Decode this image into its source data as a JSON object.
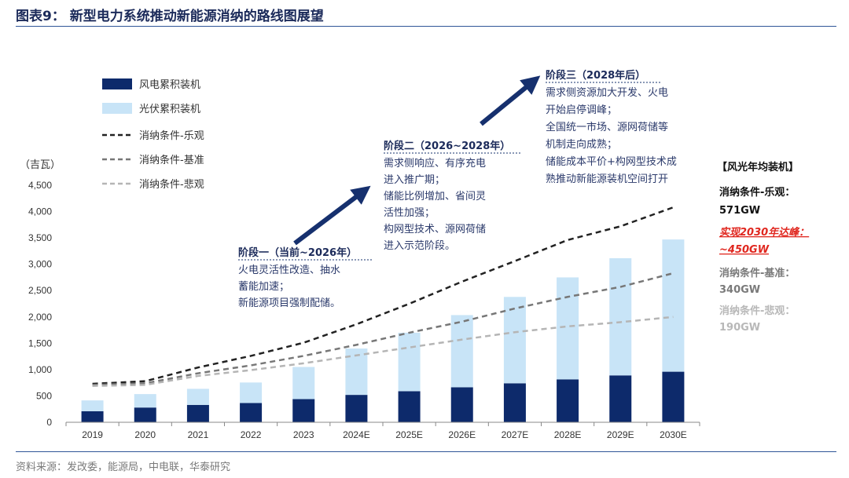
{
  "title": "图表9：  新型电力系统推动新能源消纳的路线图展望",
  "source": "资料来源：发改委，能源局，中电联，华泰研究",
  "colors": {
    "wind": "#0d2a6b",
    "solar": "#c8e4f7",
    "optimistic": "#222222",
    "base": "#777777",
    "pessimistic": "#b5b5b5",
    "arrow": "#16306e",
    "red": "#e0271f"
  },
  "chart_data": {
    "type": "bar",
    "stacked": true,
    "ylabel": "（吉瓦）",
    "ylim": [
      0,
      4500
    ],
    "yticks": [
      0,
      500,
      1000,
      1500,
      2000,
      2500,
      3000,
      3500,
      4000,
      4500
    ],
    "ytick_labels": [
      "0",
      "500",
      "1,000",
      "1,500",
      "2,000",
      "2,500",
      "3,000",
      "3,500",
      "4,000",
      "4,500"
    ],
    "categories": [
      "2019",
      "2020",
      "2021",
      "2022",
      "2023",
      "2024E",
      "2025E",
      "2026E",
      "2027E",
      "2028E",
      "2029E",
      "2030E"
    ],
    "series": [
      {
        "name": "风电累积装机",
        "kind": "bar",
        "values": [
          210,
          280,
          330,
          365,
          440,
          520,
          590,
          665,
          740,
          815,
          890,
          960
        ]
      },
      {
        "name": "光伏累积装机",
        "kind": "bar",
        "values": [
          205,
          255,
          305,
          390,
          610,
          880,
          1110,
          1370,
          1640,
          1935,
          2225,
          2510
        ]
      },
      {
        "name": "消纳条件-乐观",
        "kind": "line",
        "style": "dashed",
        "values": [
          730,
          780,
          1040,
          1260,
          1510,
          1860,
          2250,
          2670,
          3060,
          3460,
          3720,
          4080
        ]
      },
      {
        "name": "消纳条件-基准",
        "kind": "line",
        "style": "dashed",
        "values": [
          710,
          740,
          930,
          1080,
          1260,
          1470,
          1700,
          1910,
          2160,
          2380,
          2570,
          2830
        ]
      },
      {
        "name": "消纳条件-悲观",
        "kind": "line",
        "style": "dashed",
        "values": [
          690,
          710,
          880,
          990,
          1120,
          1270,
          1420,
          1570,
          1710,
          1820,
          1900,
          2000
        ]
      }
    ],
    "legend_placement": "top-left"
  },
  "stages": [
    {
      "title": "阶段一（当前~2026年）",
      "lines": [
        "火电灵活性改造、抽水",
        "蓄能加速；",
        "新能源项目强制配储。"
      ]
    },
    {
      "title": "阶段二（2026~2028年）",
      "lines": [
        "需求侧响应、有序充电",
        "进入推广期；",
        "储能比例增加、省间灵",
        "活性加强；",
        "构网型技术、源网荷储",
        "进入示范阶段。"
      ]
    },
    {
      "title": "阶段三（2028年后）",
      "lines": [
        "需求侧资源加大开发、火电",
        "开始启停调峰；",
        "全国统一市场、源网荷储等",
        "机制走向成熟；",
        "储能成本平价+构网型技术成",
        "熟推动新能源装机空间打开"
      ]
    }
  ],
  "side_panel": {
    "header": "【风光年均装机】",
    "items": [
      {
        "label": "消纳条件-乐观：",
        "value": "571GW"
      },
      {
        "label": "实现2030年达峰：",
        "value": "~450GW"
      },
      {
        "label": "消纳条件-基准：",
        "value": "340GW"
      },
      {
        "label": "消纳条件-悲观：",
        "value": "190GW"
      }
    ]
  }
}
